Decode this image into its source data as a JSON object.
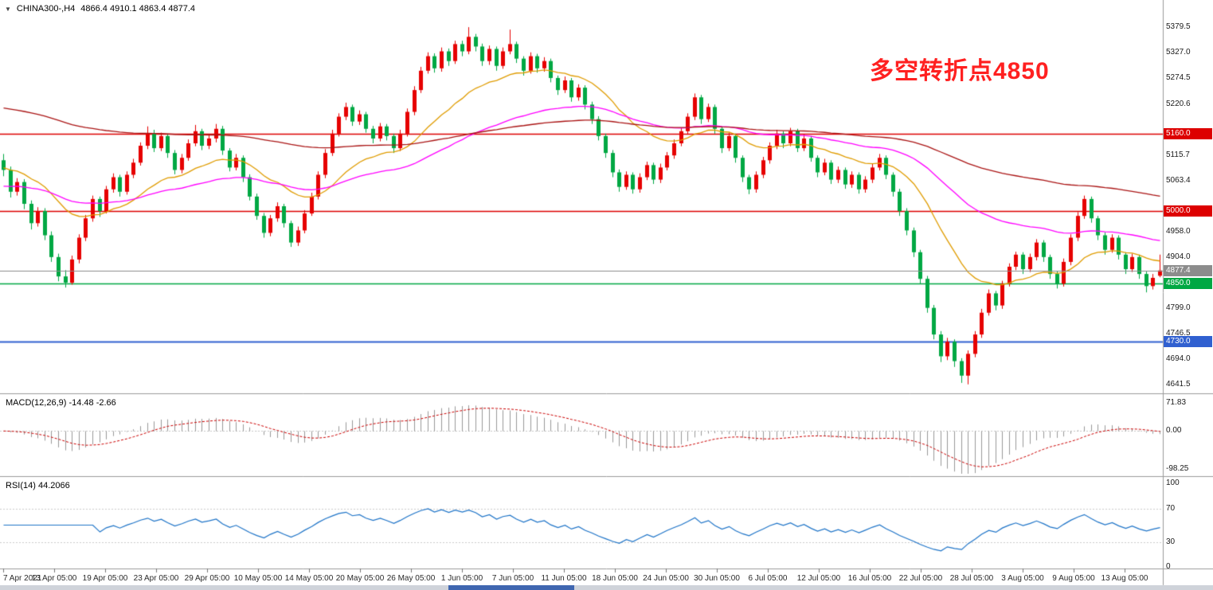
{
  "chart_header": {
    "symbol": "CHINA300-,H4",
    "ohlc": "4866.4 4910.1 4863.4 4877.4"
  },
  "annotation": {
    "text": "多空转折点4850",
    "color": "#ff2020"
  },
  "panels": {
    "macd": {
      "label": "MACD(12,26,9) -14.48 -2.66",
      "scale_labels": [
        "71.83",
        "0.00",
        "-98.25"
      ]
    },
    "rsi": {
      "label": "RSI(14) 44.2066",
      "scale_labels": [
        "100",
        "70",
        "30",
        "0"
      ]
    }
  },
  "chart_data": {
    "type": "candlestick",
    "symbol": "CHINA300-",
    "timeframe": "H4",
    "title": "CHINA300- H4 candlestick chart with MACD and RSI",
    "last_ohlc": [
      4866.4,
      4910.1,
      4863.4,
      4877.4
    ],
    "y_range": [
      4630,
      5395
    ],
    "up_color": "#e60000",
    "down_color": "#00a843",
    "price_ticks": [
      "5379.5",
      "5327.0",
      "5274.5",
      "5220.6",
      "5115.7",
      "5063.4",
      "4958.0",
      "4904.0",
      "4799.0",
      "4746.5",
      "4694.0",
      "4641.5"
    ],
    "levels": [
      {
        "price": 5160.0,
        "label": "5160.0",
        "color": "#dd0000",
        "width": 1.6,
        "type": "resistance-line"
      },
      {
        "price": 5000.0,
        "label": "5000.0",
        "color": "#dd0000",
        "width": 1.6,
        "type": "support-line"
      },
      {
        "price": 4877.4,
        "label": "4877.4",
        "color": "#8c8c8c",
        "width": 1,
        "type": "current-price"
      },
      {
        "price": 4850.0,
        "label": "4850.0",
        "color": "#00a843",
        "width": 1.6,
        "type": "pivot-line"
      },
      {
        "price": 4730.0,
        "label": "4730.0",
        "color": "#3060d0",
        "width": 2,
        "type": "lower-support-line"
      }
    ],
    "ma_lines": [
      {
        "period": 20,
        "method": "ema",
        "color": "#e09c00",
        "init": 5090
      },
      {
        "period": 55,
        "method": "ema",
        "color": "#ff00ff",
        "init": 5050
      },
      {
        "period": 140,
        "method": "ema",
        "color": "#aa1414",
        "init": 5215
      }
    ],
    "indicators": {
      "macd": {
        "fast": 12,
        "slow": 26,
        "signal": 9,
        "current_main": -14.48,
        "current_signal": -2.66,
        "range": [
          71.83,
          -98.25
        ]
      },
      "rsi": {
        "period": 14,
        "current": 44.2066,
        "range": [
          0,
          100
        ],
        "levels": [
          70,
          30
        ]
      }
    },
    "x_labels": [
      "7 Apr 2021",
      "13 Apr 05:00",
      "19 Apr 05:00",
      "23 Apr 05:00",
      "29 Apr 05:00",
      "10 May 05:00",
      "14 May 05:00",
      "20 May 05:00",
      "26 May 05:00",
      "1 Jun 05:00",
      "7 Jun 05:00",
      "11 Jun 05:00",
      "18 Jun 05:00",
      "24 Jun 05:00",
      "30 Jun 05:00",
      "6 Jul 05:00",
      "12 Jul 05:00",
      "16 Jul 05:00",
      "22 Jul 05:00",
      "28 Jul 05:00",
      "3 Aug 05:00",
      "9 Aug 05:00",
      "13 Aug 05:00"
    ],
    "candles": [
      [
        5105,
        5118,
        5072,
        5085
      ],
      [
        5085,
        5092,
        5028,
        5040
      ],
      [
        5040,
        5068,
        5032,
        5060
      ],
      [
        5060,
        5066,
        5004,
        5015
      ],
      [
        5015,
        5022,
        4962,
        4975
      ],
      [
        4975,
        5008,
        4968,
        5000
      ],
      [
        5000,
        5006,
        4940,
        4950
      ],
      [
        4950,
        4958,
        4895,
        4905
      ],
      [
        4905,
        4912,
        4855,
        4865
      ],
      [
        4865,
        4878,
        4842,
        4852
      ],
      [
        4852,
        4908,
        4848,
        4900
      ],
      [
        4900,
        4952,
        4892,
        4945
      ],
      [
        4945,
        4992,
        4938,
        4985
      ],
      [
        4985,
        5032,
        4978,
        5025
      ],
      [
        5025,
        5030,
        4988,
        5000
      ],
      [
        5000,
        5052,
        4995,
        5045
      ],
      [
        5045,
        5078,
        5038,
        5070
      ],
      [
        5070,
        5075,
        5030,
        5040
      ],
      [
        5040,
        5082,
        5034,
        5075
      ],
      [
        5075,
        5108,
        5068,
        5100
      ],
      [
        5100,
        5142,
        5094,
        5135
      ],
      [
        5135,
        5175,
        5128,
        5160
      ],
      [
        5160,
        5168,
        5122,
        5130
      ],
      [
        5130,
        5162,
        5124,
        5155
      ],
      [
        5155,
        5160,
        5110,
        5120
      ],
      [
        5120,
        5126,
        5076,
        5085
      ],
      [
        5085,
        5118,
        5078,
        5110
      ],
      [
        5110,
        5148,
        5104,
        5140
      ],
      [
        5140,
        5178,
        5134,
        5165
      ],
      [
        5165,
        5170,
        5126,
        5135
      ],
      [
        5135,
        5158,
        5128,
        5150
      ],
      [
        5150,
        5180,
        5142,
        5170
      ],
      [
        5170,
        5176,
        5116,
        5125
      ],
      [
        5125,
        5130,
        5082,
        5090
      ],
      [
        5090,
        5118,
        5084,
        5110
      ],
      [
        5110,
        5115,
        5060,
        5070
      ],
      [
        5070,
        5076,
        5022,
        5030
      ],
      [
        5030,
        5036,
        4982,
        4990
      ],
      [
        4990,
        4996,
        4945,
        4955
      ],
      [
        4955,
        4992,
        4948,
        4985
      ],
      [
        4985,
        5018,
        4978,
        5010
      ],
      [
        5010,
        5015,
        4966,
        4975
      ],
      [
        4975,
        4980,
        4926,
        4935
      ],
      [
        4935,
        4968,
        4928,
        4960
      ],
      [
        4960,
        5002,
        4954,
        4995
      ],
      [
        4995,
        5038,
        4990,
        5030
      ],
      [
        5030,
        5082,
        5024,
        5075
      ],
      [
        5075,
        5128,
        5068,
        5120
      ],
      [
        5120,
        5168,
        5114,
        5160
      ],
      [
        5160,
        5202,
        5154,
        5195
      ],
      [
        5195,
        5224,
        5188,
        5215
      ],
      [
        5215,
        5220,
        5176,
        5185
      ],
      [
        5185,
        5208,
        5178,
        5200
      ],
      [
        5200,
        5205,
        5162,
        5170
      ],
      [
        5170,
        5176,
        5140,
        5150
      ],
      [
        5150,
        5182,
        5144,
        5175
      ],
      [
        5175,
        5180,
        5146,
        5155
      ],
      [
        5155,
        5160,
        5120,
        5130
      ],
      [
        5130,
        5168,
        5124,
        5160
      ],
      [
        5160,
        5212,
        5154,
        5205
      ],
      [
        5205,
        5258,
        5198,
        5250
      ],
      [
        5250,
        5298,
        5244,
        5290
      ],
      [
        5290,
        5328,
        5284,
        5320
      ],
      [
        5320,
        5326,
        5286,
        5295
      ],
      [
        5295,
        5338,
        5288,
        5330
      ],
      [
        5330,
        5336,
        5300,
        5310
      ],
      [
        5310,
        5352,
        5304,
        5345
      ],
      [
        5345,
        5352,
        5320,
        5330
      ],
      [
        5330,
        5380,
        5324,
        5360
      ],
      [
        5360,
        5366,
        5330,
        5340
      ],
      [
        5340,
        5346,
        5300,
        5310
      ],
      [
        5310,
        5342,
        5302,
        5335
      ],
      [
        5335,
        5340,
        5290,
        5300
      ],
      [
        5300,
        5338,
        5294,
        5330
      ],
      [
        5330,
        5375,
        5324,
        5345
      ],
      [
        5345,
        5350,
        5306,
        5315
      ],
      [
        5315,
        5320,
        5280,
        5290
      ],
      [
        5290,
        5328,
        5284,
        5320
      ],
      [
        5320,
        5325,
        5286,
        5295
      ],
      [
        5295,
        5318,
        5288,
        5310
      ],
      [
        5310,
        5315,
        5266,
        5275
      ],
      [
        5275,
        5280,
        5240,
        5250
      ],
      [
        5250,
        5278,
        5244,
        5270
      ],
      [
        5270,
        5275,
        5226,
        5235
      ],
      [
        5235,
        5262,
        5228,
        5255
      ],
      [
        5255,
        5260,
        5210,
        5220
      ],
      [
        5220,
        5226,
        5180,
        5190
      ],
      [
        5190,
        5196,
        5146,
        5155
      ],
      [
        5155,
        5160,
        5110,
        5120
      ],
      [
        5120,
        5126,
        5070,
        5080
      ],
      [
        5080,
        5086,
        5040,
        5050
      ],
      [
        5050,
        5082,
        5044,
        5075
      ],
      [
        5075,
        5080,
        5036,
        5045
      ],
      [
        5045,
        5078,
        5038,
        5070
      ],
      [
        5070,
        5102,
        5064,
        5095
      ],
      [
        5095,
        5100,
        5056,
        5065
      ],
      [
        5065,
        5098,
        5058,
        5090
      ],
      [
        5090,
        5122,
        5084,
        5115
      ],
      [
        5115,
        5148,
        5108,
        5140
      ],
      [
        5140,
        5172,
        5134,
        5165
      ],
      [
        5165,
        5202,
        5158,
        5195
      ],
      [
        5195,
        5243,
        5188,
        5235
      ],
      [
        5235,
        5240,
        5180,
        5190
      ],
      [
        5190,
        5222,
        5184,
        5215
      ],
      [
        5215,
        5220,
        5160,
        5170
      ],
      [
        5170,
        5175,
        5120,
        5130
      ],
      [
        5130,
        5162,
        5124,
        5155
      ],
      [
        5155,
        5160,
        5100,
        5110
      ],
      [
        5110,
        5115,
        5060,
        5070
      ],
      [
        5070,
        5075,
        5035,
        5045
      ],
      [
        5045,
        5082,
        5038,
        5075
      ],
      [
        5075,
        5112,
        5068,
        5105
      ],
      [
        5105,
        5142,
        5098,
        5135
      ],
      [
        5135,
        5168,
        5128,
        5160
      ],
      [
        5160,
        5165,
        5130,
        5140
      ],
      [
        5140,
        5172,
        5134,
        5165
      ],
      [
        5165,
        5170,
        5122,
        5130
      ],
      [
        5130,
        5158,
        5124,
        5150
      ],
      [
        5150,
        5155,
        5102,
        5110
      ],
      [
        5110,
        5115,
        5070,
        5080
      ],
      [
        5080,
        5108,
        5074,
        5100
      ],
      [
        5100,
        5105,
        5056,
        5065
      ],
      [
        5065,
        5092,
        5058,
        5085
      ],
      [
        5085,
        5090,
        5046,
        5055
      ],
      [
        5055,
        5082,
        5048,
        5075
      ],
      [
        5075,
        5080,
        5036,
        5045
      ],
      [
        5045,
        5072,
        5038,
        5065
      ],
      [
        5065,
        5098,
        5058,
        5090
      ],
      [
        5090,
        5118,
        5084,
        5110
      ],
      [
        5110,
        5115,
        5066,
        5075
      ],
      [
        5075,
        5080,
        5030,
        5040
      ],
      [
        5040,
        5046,
        4990,
        5000
      ],
      [
        5000,
        5006,
        4950,
        4960
      ],
      [
        4960,
        4966,
        4905,
        4915
      ],
      [
        4915,
        4920,
        4850,
        4860
      ],
      [
        4860,
        4866,
        4790,
        4800
      ],
      [
        4800,
        4806,
        4735,
        4745
      ],
      [
        4745,
        4752,
        4688,
        4700
      ],
      [
        4700,
        4738,
        4692,
        4730
      ],
      [
        4730,
        4735,
        4678,
        4690
      ],
      [
        4690,
        4696,
        4645,
        4660
      ],
      [
        4660,
        4712,
        4642,
        4705
      ],
      [
        4705,
        4752,
        4698,
        4745
      ],
      [
        4745,
        4798,
        4738,
        4790
      ],
      [
        4790,
        4838,
        4784,
        4830
      ],
      [
        4830,
        4835,
        4795,
        4805
      ],
      [
        4805,
        4856,
        4798,
        4850
      ],
      [
        4850,
        4892,
        4844,
        4885
      ],
      [
        4885,
        4916,
        4878,
        4910
      ],
      [
        4910,
        4915,
        4870,
        4880
      ],
      [
        4880,
        4912,
        4874,
        4905
      ],
      [
        4905,
        4942,
        4898,
        4935
      ],
      [
        4935,
        4940,
        4895,
        4905
      ],
      [
        4905,
        4910,
        4860,
        4870
      ],
      [
        4870,
        4876,
        4840,
        4850
      ],
      [
        4850,
        4902,
        4844,
        4895
      ],
      [
        4895,
        4952,
        4888,
        4945
      ],
      [
        4945,
        4998,
        4938,
        4990
      ],
      [
        4990,
        5032,
        4984,
        5025
      ],
      [
        5025,
        5030,
        4976,
        4985
      ],
      [
        4985,
        4990,
        4940,
        4950
      ],
      [
        4950,
        4956,
        4910,
        4920
      ],
      [
        4920,
        4952,
        4914,
        4945
      ],
      [
        4945,
        4950,
        4900,
        4910
      ],
      [
        4910,
        4915,
        4870,
        4880
      ],
      [
        4880,
        4912,
        4874,
        4905
      ],
      [
        4905,
        4910,
        4860,
        4870
      ],
      [
        4870,
        4875,
        4832,
        4845
      ],
      [
        4845,
        4870,
        4838,
        4862
      ],
      [
        4866.4,
        4910.1,
        4863.4,
        4877.4
      ]
    ]
  }
}
